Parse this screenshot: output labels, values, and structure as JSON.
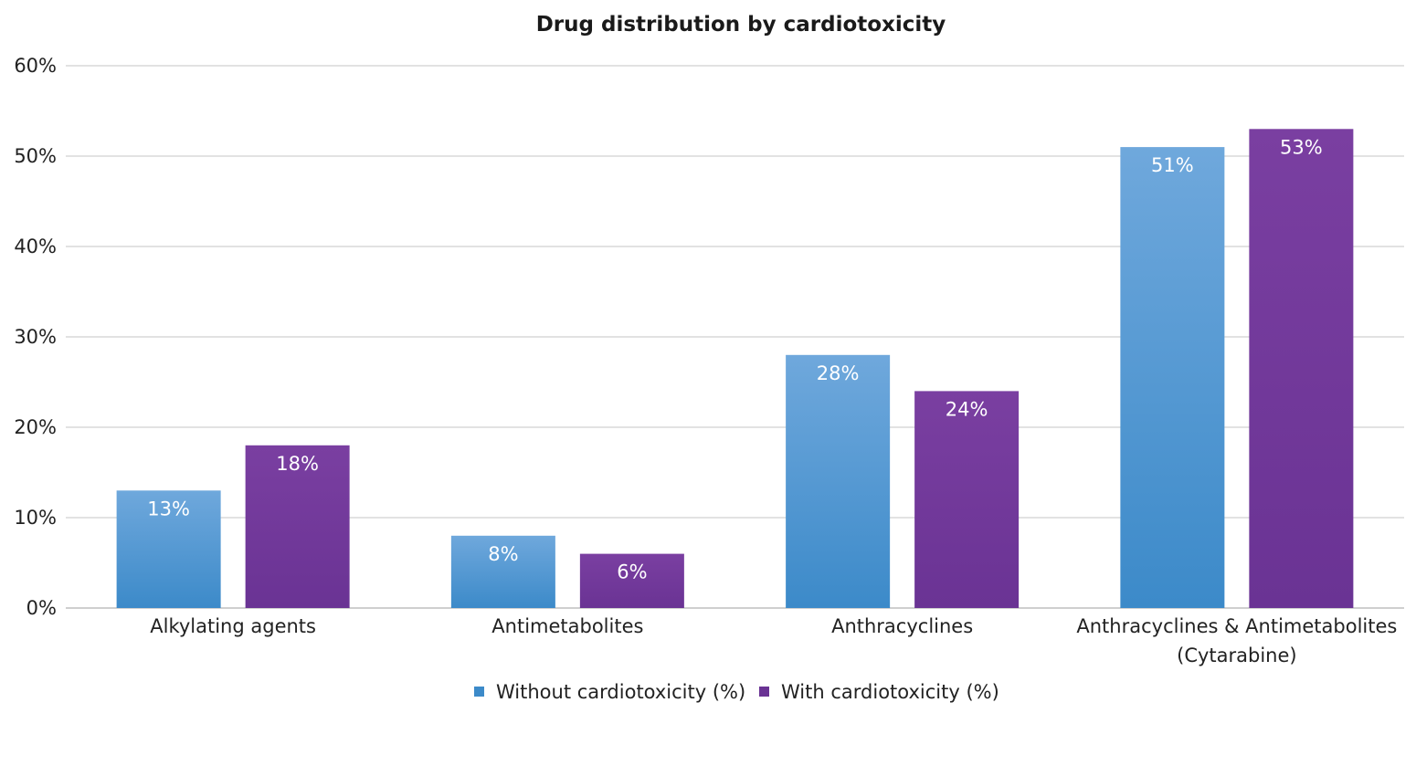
{
  "chart_data": {
    "type": "bar",
    "title": "Drug distribution by cardiotoxicity",
    "xlabel": "",
    "ylabel": "",
    "ylim": [
      0,
      60
    ],
    "ytick_step": 10,
    "ytick_suffix": "%",
    "grid": true,
    "legend_position": "bottom",
    "categories": [
      [
        "Alkylating agents"
      ],
      [
        "Antimetabolites"
      ],
      [
        "Anthracyclines"
      ],
      [
        "Anthracyclines & Antimetabolites",
        "(Cytarabine)"
      ]
    ],
    "series": [
      {
        "name": "Without cardiotoxicity (%)",
        "values": [
          13,
          8,
          28,
          51
        ],
        "labels": [
          "13%",
          "8%",
          "28%",
          "51%"
        ],
        "color_top": "#6fa8dc",
        "color_bottom": "#3c8ac9"
      },
      {
        "name": "With cardiotoxicity (%)",
        "values": [
          18,
          6,
          24,
          53
        ],
        "labels": [
          "18%",
          "6%",
          "24%",
          "53%"
        ],
        "color_top": "#7a3fa1",
        "color_bottom": "#6a3394"
      }
    ]
  }
}
